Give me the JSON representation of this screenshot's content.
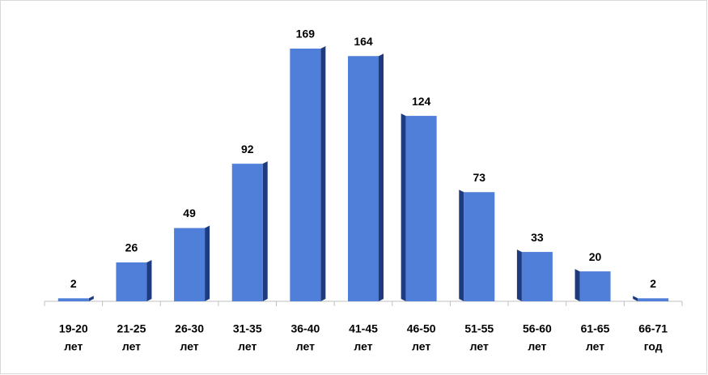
{
  "chart_data": {
    "type": "bar",
    "categories": [
      [
        "19-20",
        "лет"
      ],
      [
        "21-25",
        "лет"
      ],
      [
        "26-30",
        "лет"
      ],
      [
        "31-35",
        "лет"
      ],
      [
        "36-40",
        "лет"
      ],
      [
        "41-45",
        "лет"
      ],
      [
        "46-50",
        "лет"
      ],
      [
        "51-55",
        "лет"
      ],
      [
        "56-60",
        "лет"
      ],
      [
        "61-65",
        "лет"
      ],
      [
        "66-71",
        "год"
      ]
    ],
    "values": [
      2,
      26,
      49,
      92,
      169,
      164,
      124,
      73,
      33,
      20,
      2
    ],
    "color": "#4f7fd9"
  }
}
